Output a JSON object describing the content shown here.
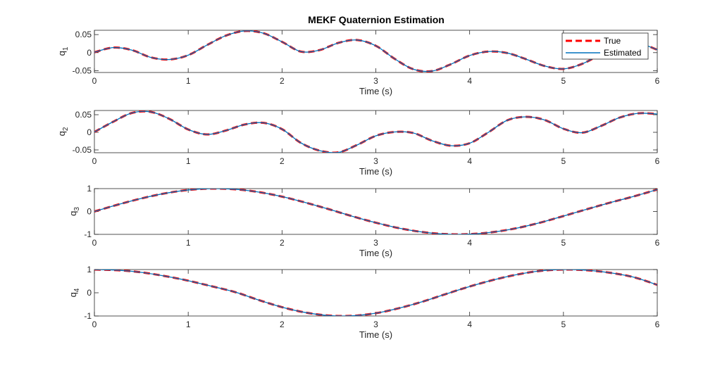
{
  "title": "MEKF Quaternion Estimation",
  "colors": {
    "true": "#ff0000",
    "true_dash_overlay": "#a0304d",
    "estimated": "#0072bd",
    "axes": "#262626"
  },
  "chart_data": [
    {
      "type": "line",
      "title": "MEKF Quaternion Estimation",
      "xlabel": "Time (s)",
      "ylabel": "q_1",
      "ylabel_main": "q",
      "ylabel_sub": "1",
      "xlim": [
        0,
        6
      ],
      "ylim": [
        -0.055,
        0.062
      ],
      "xticks": [
        "0",
        "1",
        "2",
        "3",
        "4",
        "5",
        "6"
      ],
      "yticks": [
        {
          "v": -0.05,
          "label": "-0.05"
        },
        {
          "v": 0,
          "label": "0"
        },
        {
          "v": 0.05,
          "label": "0.05"
        }
      ],
      "legend": {
        "placement": "top-right",
        "entries": [
          "True",
          "Estimated"
        ]
      },
      "grid": false,
      "series": [
        {
          "name": "True",
          "style": "dashed",
          "color": "#ff0000"
        },
        {
          "name": "Estimated",
          "style": "solid",
          "color": "#0072bd"
        }
      ],
      "x": [
        0,
        0.2,
        0.4,
        0.6,
        0.8,
        1.0,
        1.2,
        1.4,
        1.6,
        1.8,
        2.0,
        2.2,
        2.4,
        2.6,
        2.8,
        3.0,
        3.2,
        3.4,
        3.6,
        3.8,
        4.0,
        4.2,
        4.4,
        4.6,
        4.8,
        5.0,
        5.2,
        5.4,
        5.6,
        5.8,
        6.0
      ],
      "y": [
        0.001,
        0.014,
        0.007,
        -0.013,
        -0.019,
        -0.007,
        0.021,
        0.047,
        0.06,
        0.054,
        0.03,
        0.003,
        0.007,
        0.027,
        0.035,
        0.019,
        -0.017,
        -0.046,
        -0.051,
        -0.032,
        -0.008,
        0.003,
        -0.001,
        -0.018,
        -0.037,
        -0.045,
        -0.031,
        -0.004,
        0.022,
        0.026,
        0.008
      ]
    },
    {
      "type": "line",
      "xlabel": "Time (s)",
      "ylabel": "q_2",
      "ylabel_main": "q",
      "ylabel_sub": "2",
      "xlim": [
        0,
        6
      ],
      "ylim": [
        -0.058,
        0.062
      ],
      "xticks": [
        "0",
        "1",
        "2",
        "3",
        "4",
        "5",
        "6"
      ],
      "yticks": [
        {
          "v": -0.05,
          "label": "-0.05"
        },
        {
          "v": 0,
          "label": "0"
        },
        {
          "v": 0.05,
          "label": "0.05"
        }
      ],
      "grid": false,
      "series": [
        {
          "name": "True",
          "style": "dashed",
          "color": "#ff0000"
        },
        {
          "name": "Estimated",
          "style": "solid",
          "color": "#0072bd"
        }
      ],
      "x": [
        0,
        0.2,
        0.4,
        0.6,
        0.8,
        1.0,
        1.2,
        1.4,
        1.6,
        1.8,
        2.0,
        2.2,
        2.4,
        2.6,
        2.8,
        3.0,
        3.2,
        3.4,
        3.6,
        3.8,
        4.0,
        4.2,
        4.4,
        4.6,
        4.8,
        5.0,
        5.2,
        5.4,
        5.6,
        5.8,
        6.0
      ],
      "y": [
        0.001,
        0.03,
        0.055,
        0.058,
        0.038,
        0.008,
        -0.006,
        0.005,
        0.022,
        0.027,
        0.009,
        -0.03,
        -0.052,
        -0.057,
        -0.036,
        -0.01,
        0.001,
        -0.002,
        -0.024,
        -0.038,
        -0.031,
        0.0,
        0.034,
        0.044,
        0.035,
        0.01,
        -0.001,
        0.018,
        0.042,
        0.054,
        0.052
      ]
    },
    {
      "type": "line",
      "xlabel": "Time (s)",
      "ylabel": "q_3",
      "ylabel_main": "q",
      "ylabel_sub": "3",
      "xlim": [
        0,
        6
      ],
      "ylim": [
        -1,
        1
      ],
      "xticks": [
        "0",
        "1",
        "2",
        "3",
        "4",
        "5",
        "6"
      ],
      "yticks": [
        {
          "v": -1,
          "label": "-1"
        },
        {
          "v": 0,
          "label": "0"
        },
        {
          "v": 1,
          "label": "1"
        }
      ],
      "grid": false,
      "series": [
        {
          "name": "True",
          "style": "dashed",
          "color": "#ff0000"
        },
        {
          "name": "Estimated",
          "style": "solid",
          "color": "#0072bd"
        }
      ],
      "x": [
        0,
        0.25,
        0.5,
        0.75,
        1.0,
        1.25,
        1.5,
        1.75,
        2.0,
        2.25,
        2.5,
        2.75,
        3.0,
        3.25,
        3.5,
        3.75,
        4.0,
        4.25,
        4.5,
        4.75,
        5.0,
        5.25,
        5.5,
        5.75,
        6.0
      ],
      "y": [
        0.0,
        0.3,
        0.57,
        0.79,
        0.94,
        1.0,
        0.97,
        0.85,
        0.65,
        0.39,
        0.1,
        -0.21,
        -0.49,
        -0.73,
        -0.9,
        -0.99,
        -0.99,
        -0.9,
        -0.73,
        -0.49,
        -0.2,
        0.1,
        0.39,
        0.66,
        0.96
      ]
    },
    {
      "type": "line",
      "xlabel": "Time (s)",
      "ylabel": "q_4",
      "ylabel_main": "q",
      "ylabel_sub": "4",
      "xlim": [
        0,
        6
      ],
      "ylim": [
        -1,
        1
      ],
      "xticks": [
        "0",
        "1",
        "2",
        "3",
        "4",
        "5",
        "6"
      ],
      "yticks": [
        {
          "v": -1,
          "label": "-1"
        },
        {
          "v": 0,
          "label": "0"
        },
        {
          "v": 1,
          "label": "1"
        }
      ],
      "grid": false,
      "series": [
        {
          "name": "True",
          "style": "dashed",
          "color": "#ff0000"
        },
        {
          "name": "Estimated",
          "style": "solid",
          "color": "#0072bd"
        }
      ],
      "x": [
        0,
        0.25,
        0.5,
        0.75,
        1.0,
        1.25,
        1.5,
        1.75,
        2.0,
        2.25,
        2.5,
        2.75,
        3.0,
        3.25,
        3.5,
        3.75,
        4.0,
        4.25,
        4.5,
        4.75,
        5.0,
        5.25,
        5.5,
        5.75,
        6.0
      ],
      "y": [
        1.0,
        0.97,
        0.88,
        0.72,
        0.52,
        0.28,
        0.03,
        -0.31,
        -0.62,
        -0.85,
        -0.98,
        -0.99,
        -0.88,
        -0.66,
        -0.38,
        -0.05,
        0.27,
        0.55,
        0.78,
        0.94,
        1.0,
        0.97,
        0.86,
        0.67,
        0.34
      ]
    }
  ]
}
